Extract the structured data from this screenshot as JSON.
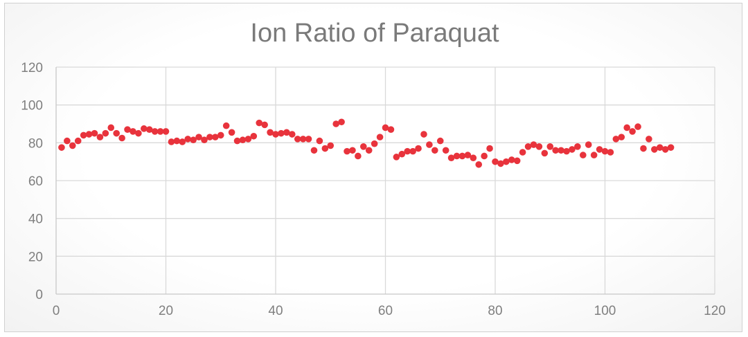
{
  "chart_data": {
    "type": "scatter",
    "title": "Ion Ratio of Paraquat",
    "xlabel": "",
    "ylabel": "",
    "xlim": [
      0,
      120
    ],
    "ylim": [
      0,
      120
    ],
    "x_ticks": [
      0,
      20,
      40,
      60,
      80,
      100,
      120
    ],
    "y_ticks": [
      0,
      20,
      40,
      60,
      80,
      100,
      120
    ],
    "grid": true,
    "legend": "none",
    "marker_color": "#e8333c",
    "series": [
      {
        "x": [
          1,
          2,
          3,
          4,
          5,
          6,
          7,
          8,
          9,
          10,
          11,
          12,
          13,
          14,
          15,
          16,
          17,
          18,
          19,
          20,
          21,
          22,
          23,
          24,
          25,
          26,
          27,
          28,
          29,
          30,
          31,
          32,
          33,
          34,
          35,
          36,
          37,
          38,
          39,
          40,
          41,
          42,
          43,
          44,
          45,
          46,
          47,
          48,
          49,
          50,
          51,
          52,
          53,
          54,
          55,
          56,
          57,
          58,
          59,
          60,
          61,
          62,
          63,
          64,
          65,
          66,
          67,
          68,
          69,
          70,
          71,
          72,
          73,
          74,
          75,
          76,
          77,
          78,
          79,
          80,
          81,
          82,
          83,
          84,
          85,
          86,
          87,
          88,
          89,
          90,
          91,
          92,
          93,
          94,
          95,
          96,
          97,
          98,
          99,
          100,
          101,
          102,
          103,
          104,
          105,
          106,
          107,
          108,
          109,
          110,
          111,
          112
        ],
        "y": [
          77.5,
          81,
          78.5,
          81,
          84,
          84.5,
          85,
          83,
          85,
          88,
          85,
          82.5,
          87,
          86,
          85,
          87.5,
          87,
          86,
          86,
          86,
          80.5,
          81,
          80.5,
          82,
          81.5,
          83,
          81.5,
          83,
          83,
          84,
          89,
          85.5,
          81,
          81.5,
          82,
          83.5,
          90.5,
          89.5,
          85.5,
          84.5,
          85,
          85.5,
          84.5,
          82,
          82,
          82,
          76,
          81,
          77,
          78.5,
          90,
          91,
          75.5,
          76,
          73,
          78,
          76,
          79.5,
          83,
          88,
          87,
          72.5,
          74,
          75.5,
          75.5,
          77,
          84.5,
          79,
          76,
          81,
          76,
          72,
          73,
          73,
          73.5,
          72,
          68.5,
          73,
          77,
          70,
          69,
          70,
          71,
          70.5,
          75,
          78,
          79,
          78,
          74.5,
          78,
          76,
          76,
          75.5,
          76.5,
          78,
          73.5,
          79,
          73.5,
          76.5,
          75.5,
          75,
          82,
          83,
          88,
          86,
          88.5,
          77,
          82,
          76.5,
          77.5,
          76.5,
          77.5
        ]
      }
    ]
  }
}
